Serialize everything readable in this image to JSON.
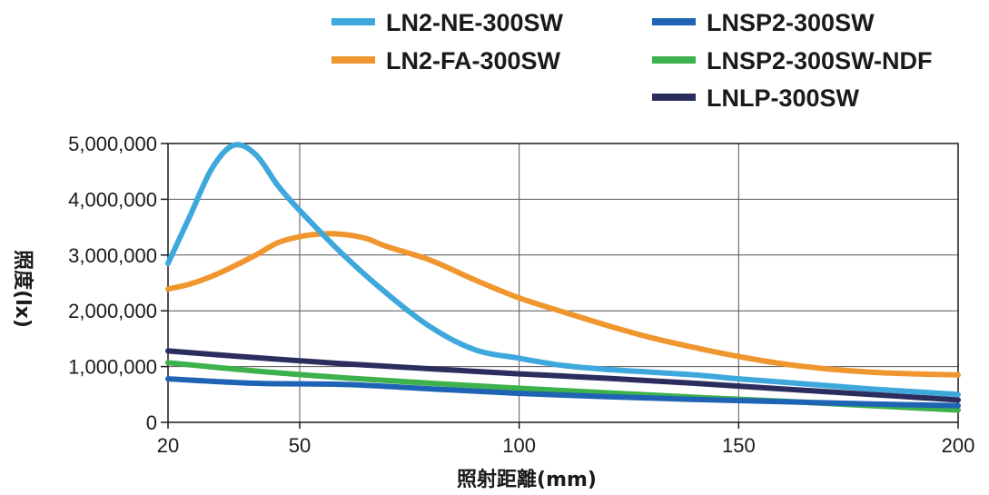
{
  "chart_data": {
    "type": "line",
    "xlabel": "照射距離(mm)",
    "ylabel": "照度(lx)",
    "xlim": [
      20,
      200
    ],
    "ylim": [
      0,
      5000000
    ],
    "x_ticks": [
      "20",
      "50",
      "100",
      "150",
      "200"
    ],
    "y_ticks": [
      "0",
      "1,000,000",
      "2,000,000",
      "3,000,000",
      "4,000,000",
      "5,000,000"
    ],
    "grid": true,
    "legend_position": "top-right",
    "series": [
      {
        "name": "LN2-NE-300SW",
        "color": "#3ea8dc",
        "x": [
          20,
          25,
          30,
          35,
          40,
          45,
          50,
          60,
          70,
          80,
          90,
          100,
          110,
          120,
          130,
          140,
          150,
          160,
          170,
          180,
          190,
          200
        ],
        "y": [
          2850000,
          3700000,
          4550000,
          4970000,
          4800000,
          4250000,
          3800000,
          3000000,
          2300000,
          1700000,
          1300000,
          1150000,
          1020000,
          950000,
          900000,
          850000,
          780000,
          720000,
          660000,
          600000,
          550000,
          500000
        ]
      },
      {
        "name": "LN2-FA-300SW",
        "color": "#f0962e",
        "x": [
          20,
          25,
          30,
          35,
          40,
          45,
          50,
          55,
          60,
          65,
          70,
          80,
          90,
          100,
          110,
          120,
          130,
          140,
          150,
          160,
          170,
          180,
          190,
          200
        ],
        "y": [
          2390000,
          2480000,
          2620000,
          2800000,
          3000000,
          3220000,
          3330000,
          3380000,
          3370000,
          3300000,
          3150000,
          2900000,
          2550000,
          2230000,
          1980000,
          1740000,
          1520000,
          1340000,
          1180000,
          1050000,
          960000,
          900000,
          870000,
          850000
        ]
      },
      {
        "name": "LNSP2-300SW",
        "color": "#1f64b4",
        "x": [
          20,
          40,
          60,
          80,
          100,
          120,
          140,
          160,
          180,
          200
        ],
        "y": [
          780000,
          700000,
          680000,
          600000,
          520000,
          460000,
          410000,
          370000,
          330000,
          300000
        ]
      },
      {
        "name": "LNSP2-300SW-NDF",
        "color": "#3db14b",
        "x": [
          20,
          40,
          60,
          80,
          100,
          120,
          140,
          160,
          180,
          200
        ],
        "y": [
          1070000,
          920000,
          800000,
          700000,
          610000,
          530000,
          450000,
          380000,
          300000,
          220000
        ]
      },
      {
        "name": "LNLP-300SW",
        "color": "#2b2d5e",
        "x": [
          20,
          40,
          60,
          80,
          100,
          120,
          140,
          160,
          180,
          200
        ],
        "y": [
          1280000,
          1160000,
          1050000,
          960000,
          870000,
          790000,
          700000,
          600000,
          500000,
          400000
        ]
      }
    ]
  }
}
